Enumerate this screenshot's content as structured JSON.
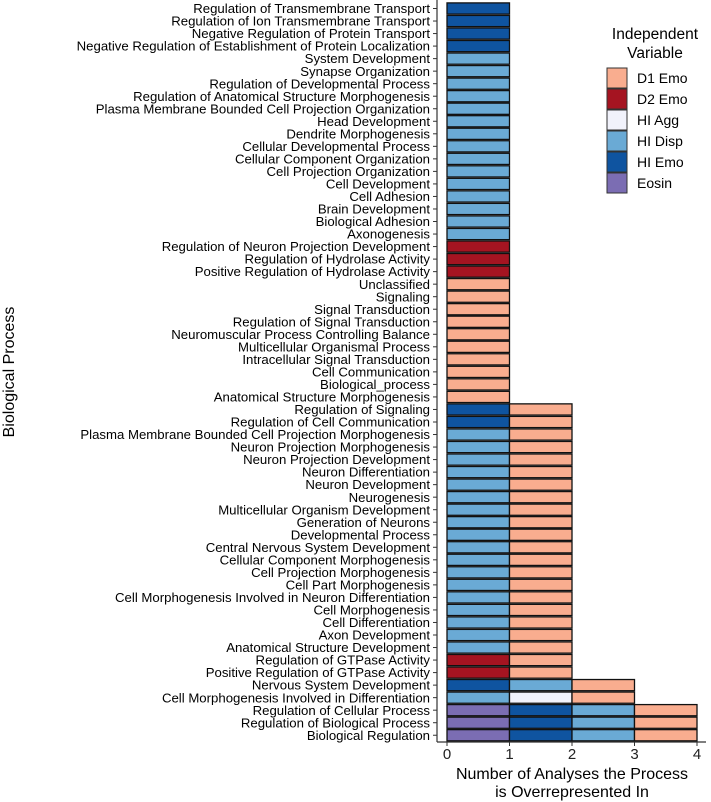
{
  "chart_data": {
    "type": "bar",
    "orientation": "horizontal",
    "stacked": true,
    "title": "",
    "xlabel": [
      "Number of Analyses the Process",
      "is Overrepresented In"
    ],
    "ylabel": "Biological Process",
    "xlim": [
      0,
      4
    ],
    "xticks": [
      0,
      1,
      2,
      3,
      4
    ],
    "grid": false,
    "legend": {
      "title": [
        "Independent",
        "Variable"
      ],
      "placement": "right",
      "entries": [
        {
          "name": "D1 Emo",
          "color": "#f9ad8f"
        },
        {
          "name": "D2 Emo",
          "color": "#a51421"
        },
        {
          "name": "HI Agg",
          "color": "#f1f2fb"
        },
        {
          "name": "HI Disp",
          "color": "#6aaad5"
        },
        {
          "name": "HI Emo",
          "color": "#0f54a0"
        },
        {
          "name": "Eosin",
          "color": "#7b6db3"
        }
      ]
    },
    "categories": [
      {
        "label": "Regulation of Transmembrane Transport",
        "segments": [
          "HI Emo"
        ]
      },
      {
        "label": "Regulation of Ion Transmembrane Transport",
        "segments": [
          "HI Emo"
        ]
      },
      {
        "label": "Negative Regulation of Protein Transport",
        "segments": [
          "HI Emo"
        ]
      },
      {
        "label": "Negative Regulation of Establishment of Protein Localization",
        "segments": [
          "HI Emo"
        ]
      },
      {
        "label": "System Development",
        "segments": [
          "HI Disp"
        ]
      },
      {
        "label": "Synapse Organization",
        "segments": [
          "HI Disp"
        ]
      },
      {
        "label": "Regulation of Developmental Process",
        "segments": [
          "HI Disp"
        ]
      },
      {
        "label": "Regulation of Anatomical Structure Morphogenesis",
        "segments": [
          "HI Disp"
        ]
      },
      {
        "label": "Plasma Membrane Bounded Cell Projection Organization",
        "segments": [
          "HI Disp"
        ]
      },
      {
        "label": "Head Development",
        "segments": [
          "HI Disp"
        ]
      },
      {
        "label": "Dendrite Morphogenesis",
        "segments": [
          "HI Disp"
        ]
      },
      {
        "label": "Cellular Developmental Process",
        "segments": [
          "HI Disp"
        ]
      },
      {
        "label": "Cellular Component Organization",
        "segments": [
          "HI Disp"
        ]
      },
      {
        "label": "Cell Projection Organization",
        "segments": [
          "HI Disp"
        ]
      },
      {
        "label": "Cell Development",
        "segments": [
          "HI Disp"
        ]
      },
      {
        "label": "Cell Adhesion",
        "segments": [
          "HI Disp"
        ]
      },
      {
        "label": "Brain Development",
        "segments": [
          "HI Disp"
        ]
      },
      {
        "label": "Biological Adhesion",
        "segments": [
          "HI Disp"
        ]
      },
      {
        "label": "Axonogenesis",
        "segments": [
          "HI Disp"
        ]
      },
      {
        "label": "Regulation of Neuron Projection Development",
        "segments": [
          "D2 Emo"
        ]
      },
      {
        "label": "Regulation of Hydrolase Activity",
        "segments": [
          "D2 Emo"
        ]
      },
      {
        "label": "Positive Regulation of Hydrolase Activity",
        "segments": [
          "D2 Emo"
        ]
      },
      {
        "label": "Unclassified",
        "segments": [
          "D1 Emo"
        ]
      },
      {
        "label": "Signaling",
        "segments": [
          "D1 Emo"
        ]
      },
      {
        "label": "Signal Transduction",
        "segments": [
          "D1 Emo"
        ]
      },
      {
        "label": "Regulation of Signal Transduction",
        "segments": [
          "D1 Emo"
        ]
      },
      {
        "label": "Neuromuscular Process Controlling Balance",
        "segments": [
          "D1 Emo"
        ]
      },
      {
        "label": "Multicellular Organismal Process",
        "segments": [
          "D1 Emo"
        ]
      },
      {
        "label": "Intracellular Signal Transduction",
        "segments": [
          "D1 Emo"
        ]
      },
      {
        "label": "Cell Communication",
        "segments": [
          "D1 Emo"
        ]
      },
      {
        "label": "Biological_process",
        "segments": [
          "D1 Emo"
        ]
      },
      {
        "label": "Anatomical Structure Morphogenesis",
        "segments": [
          "D1 Emo"
        ]
      },
      {
        "label": "Regulation of Signaling",
        "segments": [
          "HI Emo",
          "D1 Emo"
        ]
      },
      {
        "label": "Regulation of Cell Communication",
        "segments": [
          "HI Emo",
          "D1 Emo"
        ]
      },
      {
        "label": "Plasma Membrane Bounded Cell Projection Morphogenesis",
        "segments": [
          "HI Disp",
          "D1 Emo"
        ]
      },
      {
        "label": "Neuron Projection Morphogenesis",
        "segments": [
          "HI Disp",
          "D1 Emo"
        ]
      },
      {
        "label": "Neuron Projection Development",
        "segments": [
          "HI Disp",
          "D1 Emo"
        ]
      },
      {
        "label": "Neuron Differentiation",
        "segments": [
          "HI Disp",
          "D1 Emo"
        ]
      },
      {
        "label": "Neuron Development",
        "segments": [
          "HI Disp",
          "D1 Emo"
        ]
      },
      {
        "label": "Neurogenesis",
        "segments": [
          "HI Disp",
          "D1 Emo"
        ]
      },
      {
        "label": "Multicellular Organism Development",
        "segments": [
          "HI Disp",
          "D1 Emo"
        ]
      },
      {
        "label": "Generation of Neurons",
        "segments": [
          "HI Disp",
          "D1 Emo"
        ]
      },
      {
        "label": "Developmental Process",
        "segments": [
          "HI Disp",
          "D1 Emo"
        ]
      },
      {
        "label": "Central Nervous System Development",
        "segments": [
          "HI Disp",
          "D1 Emo"
        ]
      },
      {
        "label": "Cellular Component Morphogenesis",
        "segments": [
          "HI Disp",
          "D1 Emo"
        ]
      },
      {
        "label": "Cell Projection Morphogenesis",
        "segments": [
          "HI Disp",
          "D1 Emo"
        ]
      },
      {
        "label": "Cell Part Morphogenesis",
        "segments": [
          "HI Disp",
          "D1 Emo"
        ]
      },
      {
        "label": "Cell Morphogenesis Involved in Neuron Differentiation",
        "segments": [
          "HI Disp",
          "D1 Emo"
        ]
      },
      {
        "label": "Cell Morphogenesis",
        "segments": [
          "HI Disp",
          "D1 Emo"
        ]
      },
      {
        "label": "Cell Differentiation",
        "segments": [
          "HI Disp",
          "D1 Emo"
        ]
      },
      {
        "label": "Axon Development",
        "segments": [
          "HI Disp",
          "D1 Emo"
        ]
      },
      {
        "label": "Anatomical Structure Development",
        "segments": [
          "HI Disp",
          "D1 Emo"
        ]
      },
      {
        "label": "Regulation of GTPase Activity",
        "segments": [
          "D2 Emo",
          "D1 Emo"
        ]
      },
      {
        "label": "Positive Regulation of GTPase Activity",
        "segments": [
          "D2 Emo",
          "D1 Emo"
        ]
      },
      {
        "label": "Nervous System Development",
        "segments": [
          "HI Emo",
          "HI Disp",
          "D1 Emo"
        ]
      },
      {
        "label": "Cell Morphogenesis Involved in Differentiation",
        "segments": [
          "HI Disp",
          "HI Agg",
          "D1 Emo"
        ]
      },
      {
        "label": "Regulation of Cellular Process",
        "segments": [
          "Eosin",
          "HI Emo",
          "HI Disp",
          "D1 Emo"
        ]
      },
      {
        "label": "Regulation of Biological Process",
        "segments": [
          "Eosin",
          "HI Emo",
          "HI Disp",
          "D1 Emo"
        ]
      },
      {
        "label": "Biological Regulation",
        "segments": [
          "Eosin",
          "HI Emo",
          "HI Disp",
          "D1 Emo"
        ]
      }
    ]
  }
}
